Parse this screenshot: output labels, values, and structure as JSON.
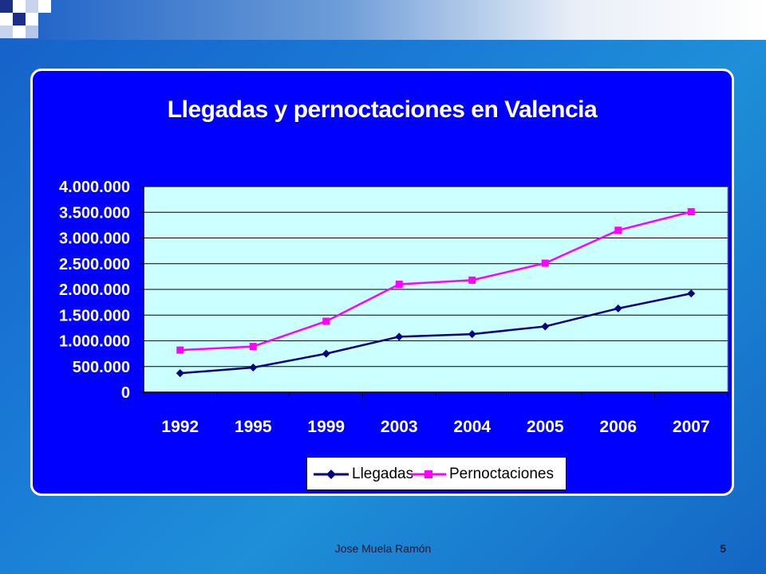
{
  "slide": {
    "author": "Jose Muela Ramón",
    "page_number": "5",
    "colors": {
      "chart_background": "#0000ff",
      "plot_background": "#ccffff",
      "llegadas_line": "#000080",
      "pernoctaciones_line": "#ff00ff"
    }
  },
  "chart_data": {
    "type": "line",
    "title": "Llegadas y pernoctaciones en Valencia",
    "categories": [
      "1992",
      "1995",
      "1999",
      "2003",
      "2004",
      "2005",
      "2006",
      "2007"
    ],
    "series": [
      {
        "name": "Llegadas",
        "color": "#000080",
        "marker": "diamond",
        "values": [
          370000,
          480000,
          750000,
          1080000,
          1130000,
          1280000,
          1630000,
          1920000
        ]
      },
      {
        "name": "Pernoctaciones",
        "color": "#ff00ff",
        "marker": "square",
        "values": [
          820000,
          890000,
          1380000,
          2100000,
          2180000,
          2510000,
          3150000,
          3510000
        ]
      }
    ],
    "ylim": [
      0,
      4000000
    ],
    "yticks": [
      "0",
      "500.000",
      "1.000.000",
      "1.500.000",
      "2.000.000",
      "2.500.000",
      "3.000.000",
      "3.500.000",
      "4.000.000"
    ],
    "grid": "horizontal",
    "legend_position": "bottom"
  }
}
